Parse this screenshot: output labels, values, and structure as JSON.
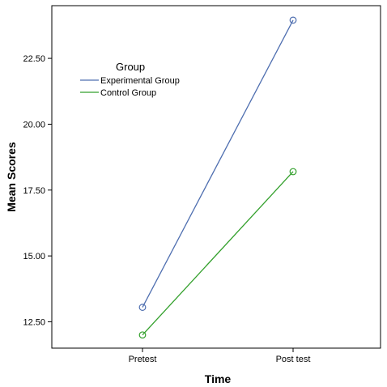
{
  "chart_data": {
    "type": "line",
    "xlabel": "Time",
    "ylabel": "Mean Scores",
    "categories": [
      "Pretest",
      "Post test"
    ],
    "ylim": [
      11.5,
      24.5
    ],
    "yticks": [
      "12.50",
      "15.00",
      "17.50",
      "20.00",
      "22.50"
    ],
    "grid": false,
    "legend": {
      "title": "Group",
      "placement": "upper-left"
    },
    "series": [
      {
        "name": "Experimental Group",
        "color": "#4f6fb0",
        "marker": "open-circle",
        "values": [
          13.05,
          23.95
        ]
      },
      {
        "name": "Control Group",
        "color": "#33a02c",
        "marker": "open-circle",
        "values": [
          12.0,
          18.2
        ]
      }
    ]
  }
}
